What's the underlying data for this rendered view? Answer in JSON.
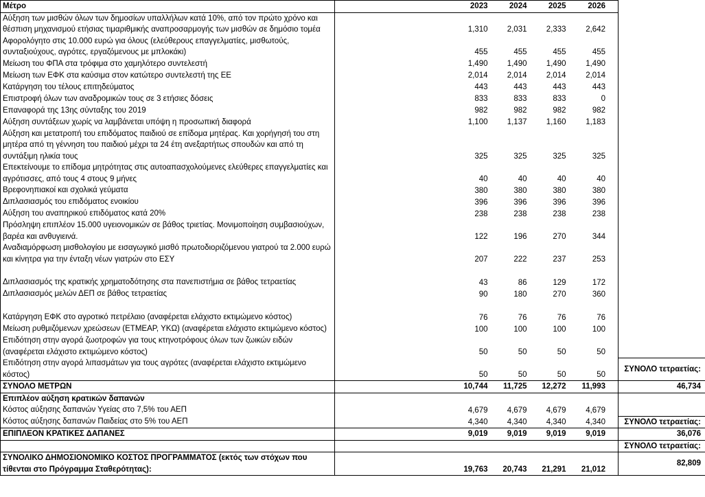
{
  "header": {
    "measure": "Μέτρο",
    "years": [
      "2023",
      "2024",
      "2025",
      "2026"
    ],
    "extra": ""
  },
  "rows": [
    {
      "label": "Αύξηση των μισθών όλων των δημοσίων υπαλλήλων κατά 10%, από τον πρώτο χρόνο και θέσπιση μηχανισμού ετήσιας τιμαριθμικής αναπροσαρμογής των μισθών σε δημόσιο τομέα",
      "values": [
        "1,310",
        "2,031",
        "2,333",
        "2,642"
      ]
    },
    {
      "label": "Αφορολόγητο στις 10.000 ευρώ για όλους (ελεύθερους επαγγελματίες, μισθωτούς, συνταξιούχους, αγρότες, εργαζόμενους με μπλοκάκι)",
      "values": [
        "455",
        "455",
        "455",
        "455"
      ]
    },
    {
      "label": "Μείωση του ΦΠΑ στα τρόφιμα στο χαμηλότερο συντελεστή",
      "values": [
        "1,490",
        "1,490",
        "1,490",
        "1,490"
      ]
    },
    {
      "label": "Μείωση των ΕΦΚ στα καύσιμα στον κατώτερο συντελεστή της ΕΕ",
      "values": [
        "2,014",
        "2,014",
        "2,014",
        "2,014"
      ]
    },
    {
      "label": "Κατάργηση του τέλους επιτηδεύματος",
      "values": [
        "443",
        "443",
        "443",
        "443"
      ]
    },
    {
      "label": "Επιστροφή όλων των αναδρομικών τους σε 3 ετήσιες δόσεις",
      "values": [
        "833",
        "833",
        "833",
        "0"
      ]
    },
    {
      "label": "Επαναφορά της 13ης σύνταξης του 2019",
      "values": [
        "982",
        "982",
        "982",
        "982"
      ]
    },
    {
      "label": "Αύξηση συντάξεων χωρίς να λαμβάνεται υπόψη η προσωπική διαφορά",
      "values": [
        "1,100",
        "1,137",
        "1,160",
        "1,183"
      ]
    },
    {
      "label": "Αύξηση και μετατροπή του επιδόματος παιδιού σε επίδομα μητέρας. Και χορήγησή του στη μητέρα από τη γέννηση του παιδιού μέχρι τα 24 έτη ανεξαρτήτως σπουδών και από τη συντάξιμη ηλικία τους",
      "values": [
        "325",
        "325",
        "325",
        "325"
      ]
    },
    {
      "label": "Επεκτείνουμε το επίδομα μητρότητας στις αυτοαπασχολούμενες ελεύθερες επαγγελματίες και αγρότισσες, από τους 4 στους 9 μήνες",
      "values": [
        "40",
        "40",
        "40",
        "40"
      ]
    },
    {
      "label": "Βρεφονηπιακοί και σχολικά γεύματα",
      "values": [
        "380",
        "380",
        "380",
        "380"
      ]
    },
    {
      "label": "Διπλασιασμός του επιδόματος ενοικίου",
      "values": [
        "396",
        "396",
        "396",
        "396"
      ]
    },
    {
      "label": "Αύξηση του αναπηρικού επιδόματος κατά 20%",
      "values": [
        "238",
        "238",
        "238",
        "238"
      ]
    },
    {
      "label": "Πρόσληψη επιπλέον 15.000 υγειονομικών σε βάθος τριετίας. Μονιμοποίηση συμβασιούχων, βαρέα και ανθυγιεινά.",
      "values": [
        "122",
        "196",
        "270",
        "344"
      ]
    },
    {
      "label": "Αναδιαμόρφωση μισθολογίου με εισαγωγικό μισθό πρωτοδιοριζόμενου γιατρού τα 2.000 ευρώ και κίνητρα για την ένταξη νέων γιατρών στο ΕΣΥ",
      "values": [
        "207",
        "222",
        "237",
        "253"
      ]
    },
    {
      "label": "",
      "name": "spacer-row"
    },
    {
      "label": "Διπλασιασμός της κρατικής χρηματοδότησης στα πανεπιστήμια σε βάθος τετραετίας",
      "values": [
        "43",
        "86",
        "129",
        "172"
      ]
    },
    {
      "label": "Διπλασιασμός μελών ΔΕΠ σε βάθος τετραετίας",
      "values": [
        "90",
        "180",
        "270",
        "360"
      ]
    },
    {
      "label": "",
      "name": "spacer-row"
    },
    {
      "label": "Κατάργηση ΕΦΚ στο αγροτικό πετρέλαιο (αναφέρεται ελάχιστο εκτιμώμενο κόστος)",
      "values": [
        "76",
        "76",
        "76",
        "76"
      ]
    },
    {
      "label": "Μείωση ρυθμιζόμενων χρεώσεων (ΕΤΜΕΑΡ, ΥΚΩ) (αναφέρεται ελάχιστο εκτιμώμενο κόστος)",
      "values": [
        "100",
        "100",
        "100",
        "100"
      ]
    },
    {
      "label": "Επιδότηση στην αγορά ζωοτροφών για τους κτηνοτρόφους όλων των ζωικών ειδών (αναφέρεται ελάχιστο εκτιμώμενο κόστος)",
      "values": [
        "50",
        "50",
        "50",
        "50"
      ]
    },
    {
      "label": "Επιδότηση στην αγορά λιπασμάτων για τους αγρότες (αναφέρεται ελάχιστο εκτιμώμενο κόστος)",
      "values": [
        "50",
        "50",
        "50",
        "50"
      ],
      "extra": "ΣΥΝΟΛΟ τετραετίας:"
    },
    {
      "label": "ΣΥΝΟΛΟ ΜΕΤΡΩΝ",
      "values": [
        "10,744",
        "11,725",
        "12,272",
        "11,993"
      ],
      "extra": "46,734",
      "bold": true,
      "bt": true,
      "bb": true,
      "name": "row-total-measures"
    },
    {
      "label": "Επιπλέον αύξηση κρατικών δαπανών",
      "bold": true,
      "name": "row-section-state-spending"
    },
    {
      "label": "Κόστος αύξησης δαπανών Υγείας στο 7,5% του ΑΕΠ",
      "values": [
        "4,679",
        "4,679",
        "4,679",
        "4,679"
      ]
    },
    {
      "label": "Κόστος αύξησης δαπανών Παιδείας στο 5% του ΑΕΠ",
      "values": [
        "4,340",
        "4,340",
        "4,340",
        "4,340"
      ],
      "extra": "ΣΥΝΟΛΟ τετραετίας:"
    },
    {
      "label": "ΕΠΙΠΛΕΟΝ ΚΡΑΤΙΚΕΣ ΔΑΠΑΝΕΣ",
      "values": [
        "9,019",
        "9,019",
        "9,019",
        "9,019"
      ],
      "extra": "36,076",
      "bold": true,
      "bt": true,
      "bb": true,
      "name": "row-total-extra-state-spending"
    },
    {
      "label": "",
      "extra": "ΣΥΝΟΛΟ τετραετίας:",
      "name": "spacer-row"
    },
    {
      "label": "ΣΥΝΟΛΙΚΟ ΔΗΜΟΣΙΟΝΟΜΙΚΟ ΚΟΣΤΟΣ ΠΡΟΓΡΑΜΜΑΤΟΣ (εκτός των στόχων που τίθενται στο Πρόγραμμα Σταθερότητας):",
      "values": [
        "19,763",
        "20,743",
        "21,291",
        "21,012"
      ],
      "extra": "82,809",
      "bold": true,
      "bt": true,
      "bb": true,
      "name": "row-grand-total"
    }
  ]
}
